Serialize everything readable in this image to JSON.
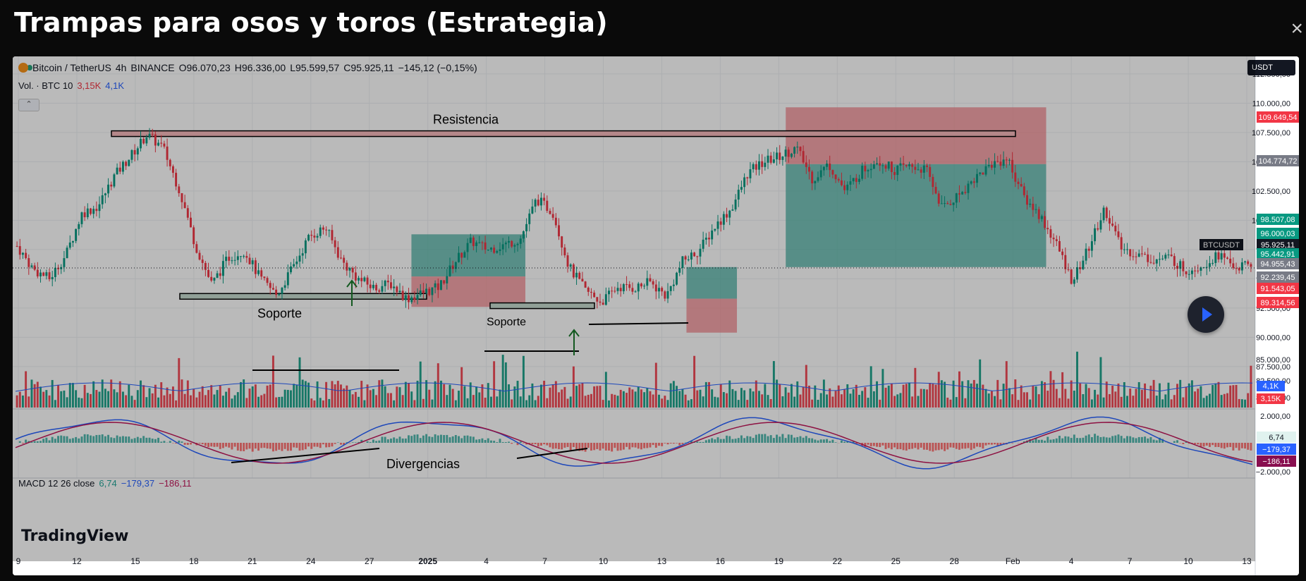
{
  "page_title": "Trampas para osos y toros (Estrategia)",
  "close_label": "×",
  "header": {
    "symbol": "Bitcoin / TetherUS",
    "interval": "4h",
    "exchange": "BINANCE",
    "open": "O96.070,23",
    "high": "H96.336,00",
    "low": "L95.599,57",
    "close": "C95.925,11",
    "change": "−145,12 (−0,15%)"
  },
  "volume_legend": {
    "label": "Vol. · BTC 10",
    "value1": "3,15K",
    "value2": "4,1K"
  },
  "macd_legend": {
    "label": "MACD 12 26 close",
    "v1": "6,74",
    "v2": "−179,37",
    "v3": "−186,11"
  },
  "currency": "USDT",
  "collapse_glyph": "⌃",
  "annotations": {
    "resistencia": "Resistencia",
    "soporte_1": "Soporte",
    "soporte_2": "Soporte",
    "divergencias": "Divergencias"
  },
  "watermark": "TradingView",
  "colors": {
    "up": "#089981",
    "down": "#f23645",
    "macd_line": "#2962ff",
    "signal_line": "#c2185b",
    "resistance_zone": "#f8bbbd",
    "support_zone": "#c7dcd0",
    "long_profit": "#3ea99b",
    "long_loss": "#f27f86"
  },
  "chart_data": {
    "type": "candlestick",
    "symbol": "BTCUSDT",
    "interval": "4h",
    "x_tick_labels": [
      "9",
      "12",
      "15",
      "18",
      "21",
      "24",
      "27",
      "2025",
      "4",
      "7",
      "10",
      "13",
      "16",
      "19",
      "22",
      "25",
      "28",
      "Feb",
      "4",
      "7",
      "10",
      "13"
    ],
    "price_axis_ticks": [
      87500,
      90000,
      92500,
      95000,
      97500,
      100000,
      102500,
      105000,
      107500,
      110000,
      112500
    ],
    "price_axis_labels": [
      "87.500,00",
      "90.000,00",
      "92.500,00",
      "95.000,00",
      "97.500,00",
      "100.000,00",
      "102.500,00",
      "105.000,00",
      "107.500,00",
      "110.000,00",
      "112.500,00"
    ],
    "ylim": [
      84000,
      114000
    ],
    "visible_extra_axis_labels": [
      "85.000,00",
      "82.500,00",
      "80.000,00"
    ],
    "price_path": [
      [
        0,
        97800
      ],
      [
        1,
        95800
      ],
      [
        2,
        95000
      ],
      [
        3,
        97000
      ],
      [
        4,
        100600
      ],
      [
        5,
        101200
      ],
      [
        6,
        103800
      ],
      [
        7,
        105500
      ],
      [
        8,
        107300
      ],
      [
        9,
        106200
      ],
      [
        10,
        102600
      ],
      [
        11,
        97800
      ],
      [
        12,
        94500
      ],
      [
        13,
        96800
      ],
      [
        14,
        97400
      ],
      [
        15,
        95000
      ],
      [
        16,
        93600
      ],
      [
        17,
        96000
      ],
      [
        18,
        98600
      ],
      [
        19,
        99400
      ],
      [
        20,
        96500
      ],
      [
        21,
        95000
      ],
      [
        22,
        94200
      ],
      [
        23,
        94600
      ],
      [
        24,
        93300
      ],
      [
        25,
        93800
      ],
      [
        26,
        94300
      ],
      [
        27,
        96500
      ],
      [
        28,
        98200
      ],
      [
        29,
        97500
      ],
      [
        30,
        97900
      ],
      [
        31,
        98400
      ],
      [
        32,
        101800
      ],
      [
        33,
        100700
      ],
      [
        34,
        96000
      ],
      [
        35,
        94000
      ],
      [
        36,
        93000
      ],
      [
        37,
        94300
      ],
      [
        38,
        94200
      ],
      [
        39,
        94700
      ],
      [
        40,
        93500
      ],
      [
        41,
        96500
      ],
      [
        42,
        97400
      ],
      [
        43,
        99500
      ],
      [
        44,
        101000
      ],
      [
        45,
        104000
      ],
      [
        46,
        105000
      ],
      [
        47,
        105500
      ],
      [
        48,
        106200
      ],
      [
        49,
        103500
      ],
      [
        50,
        104800
      ],
      [
        51,
        102500
      ],
      [
        52,
        104200
      ],
      [
        53,
        105200
      ],
      [
        54,
        104300
      ],
      [
        55,
        104600
      ],
      [
        56,
        104300
      ],
      [
        57,
        101000
      ],
      [
        58,
        102200
      ],
      [
        59,
        103600
      ],
      [
        60,
        104800
      ],
      [
        61,
        105300
      ],
      [
        62,
        102000
      ],
      [
        63,
        100400
      ],
      [
        64,
        98000
      ],
      [
        65,
        94800
      ],
      [
        66,
        97600
      ],
      [
        67,
        101000
      ],
      [
        68,
        97600
      ],
      [
        69,
        97100
      ],
      [
        70,
        96600
      ],
      [
        71,
        96800
      ],
      [
        72,
        95700
      ],
      [
        73,
        96200
      ],
      [
        74,
        97100
      ],
      [
        75,
        96000
      ],
      [
        76,
        96100
      ]
    ],
    "volume_max_bar_btc": "8K",
    "volume_labels": {
      "ma": "4,1K",
      "last": "3,15K"
    },
    "macd_axis_ticks": [
      "2.000,00",
      "−2.000,00"
    ],
    "price_labels_right": [
      {
        "text": "109.649,54",
        "kind": "down"
      },
      {
        "text": "104.774,72",
        "kind": "gray"
      },
      {
        "text": "98.507,08",
        "kind": "up"
      },
      {
        "text": "96.000,03",
        "kind": "up"
      },
      {
        "text": "BTCUSDT",
        "kind": "dark"
      },
      {
        "text": "95.925,11",
        "kind": "dark"
      },
      {
        "text": "95.442,91",
        "kind": "up"
      },
      {
        "text": "94.955,43",
        "kind": "gray"
      },
      {
        "text": "92.239,45",
        "kind": "gray"
      },
      {
        "text": "91.543,05",
        "kind": "down"
      },
      {
        "text": "89.314,56",
        "kind": "down"
      }
    ],
    "macd_right_labels": [
      {
        "text": "6,74",
        "kind": "hist"
      },
      {
        "text": "−179,37",
        "kind": "macd"
      },
      {
        "text": "−186,11",
        "kind": "signal"
      }
    ],
    "volume_right_labels": [
      {
        "text": "4,1K",
        "kind": "macd"
      },
      {
        "text": "3,15K",
        "kind": "down"
      }
    ],
    "resistance_level": 107400,
    "support_zones": [
      {
        "label": "Soporte",
        "level": 93500
      },
      {
        "label": "Soporte",
        "level": 92700
      }
    ],
    "long_positions": [
      {
        "entry": 95200,
        "target": 98800,
        "stop": 92600
      },
      {
        "entry": 93300,
        "target": 96000,
        "stop": 90400
      },
      {
        "entry": 104800,
        "target": 96000,
        "stop": 109649.54
      }
    ]
  }
}
